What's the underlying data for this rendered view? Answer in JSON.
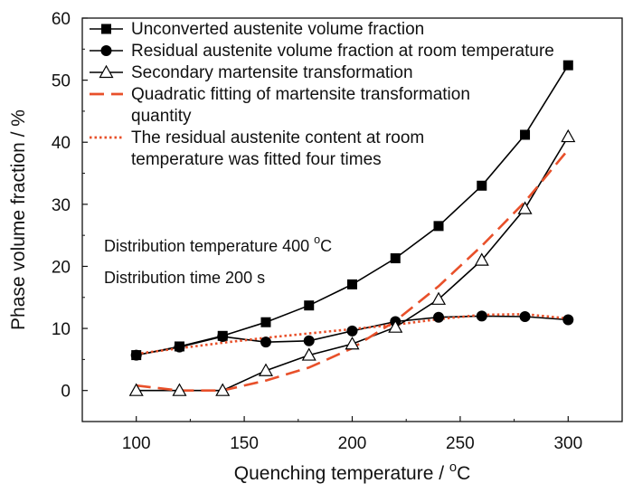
{
  "chart_data": {
    "type": "line",
    "title": "",
    "xlabel": "Quenching temperature / °C",
    "ylabel": "Phase volume fraction / %",
    "xlim": [
      75,
      325
    ],
    "ylim": [
      -5,
      60
    ],
    "xticks": [
      100,
      150,
      200,
      250,
      300
    ],
    "yticks": [
      0,
      10,
      20,
      30,
      40,
      50,
      60
    ],
    "grid": false,
    "legend_position": "top-left",
    "series": [
      {
        "name": "Unconverted austenite volume fraction",
        "marker": "square",
        "line": "solid",
        "color": "#000000",
        "x": [
          100,
          120,
          140,
          160,
          180,
          200,
          220,
          240,
          260,
          280,
          300
        ],
        "y": [
          5.7,
          7.1,
          8.8,
          11.0,
          13.7,
          17.1,
          21.3,
          26.5,
          33.0,
          41.2,
          52.4
        ]
      },
      {
        "name": "Residual austenite volume fraction at room temperature",
        "marker": "circle",
        "line": "solid",
        "color": "#000000",
        "x": [
          100,
          120,
          140,
          160,
          180,
          200,
          220,
          240,
          260,
          280,
          300
        ],
        "y": [
          5.7,
          7.0,
          8.7,
          7.8,
          8.0,
          9.6,
          11.1,
          11.8,
          12.0,
          11.9,
          11.4
        ]
      },
      {
        "name": "Secondary martensite transformation",
        "marker": "open-triangle",
        "line": "solid",
        "color": "#000000",
        "x": [
          100,
          120,
          140,
          160,
          180,
          200,
          220,
          240,
          260,
          280,
          300
        ],
        "y": [
          0.0,
          0.0,
          0.0,
          3.2,
          5.7,
          7.5,
          10.2,
          14.7,
          21.0,
          29.3,
          40.9
        ]
      },
      {
        "name": "Quadratic fitting of martensite transformation quantity",
        "marker": "none",
        "line": "dashed",
        "color": "#e8502a",
        "x": [
          100,
          120,
          140,
          160,
          180,
          200,
          220,
          240,
          260,
          280,
          300
        ],
        "y": [
          0.8,
          0.0,
          0.0,
          1.6,
          3.7,
          6.8,
          11.2,
          16.8,
          23.3,
          30.4,
          38.8
        ]
      },
      {
        "name": "The residual austenite content at room temperature was fitted four times",
        "marker": "none",
        "line": "dotted",
        "color": "#e8502a",
        "x": [
          100,
          120,
          140,
          160,
          180,
          200,
          220,
          240,
          260,
          280,
          300
        ],
        "y": [
          5.9,
          6.8,
          7.7,
          8.5,
          9.2,
          9.9,
          10.6,
          11.5,
          12.2,
          12.3,
          11.6
        ]
      }
    ],
    "legend_lines": [
      [
        "Unconverted austenite volume fraction"
      ],
      [
        "Residual austenite volume fraction at room temperature"
      ],
      [
        "Secondary martensite transformation"
      ],
      [
        "Quadratic fitting of martensite transformation",
        "quantity"
      ],
      [
        "The residual austenite content at room",
        "temperature was fitted four times"
      ]
    ],
    "annotations": [
      "Distribution temperature 400 °C",
      "Distribution time 200 s"
    ]
  }
}
